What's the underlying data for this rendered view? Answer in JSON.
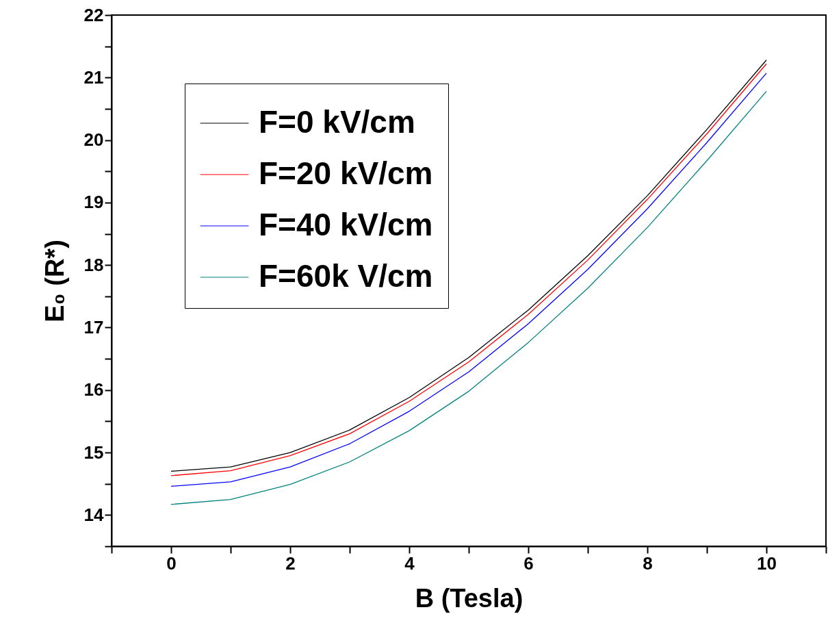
{
  "chart_data": {
    "type": "line",
    "xlabel": "B (Tesla)",
    "ylabel": "E₀ (R*)",
    "x": [
      0,
      1,
      2,
      3,
      4,
      5,
      6,
      7,
      8,
      9,
      10
    ],
    "series": [
      {
        "name": "F=0 kV/cm",
        "color": "#000000",
        "values": [
          14.7,
          14.77,
          15.0,
          15.36,
          15.88,
          16.52,
          17.28,
          18.15,
          19.11,
          20.17,
          21.28
        ]
      },
      {
        "name": "F=20 kV/cm",
        "color": "#ff0000",
        "values": [
          14.63,
          14.71,
          14.95,
          15.3,
          15.82,
          16.45,
          17.21,
          18.08,
          19.05,
          20.1,
          21.22
        ]
      },
      {
        "name": "F=40 kV/cm",
        "color": "#0000ff",
        "values": [
          14.46,
          14.53,
          14.77,
          15.14,
          15.66,
          16.29,
          17.06,
          17.93,
          18.9,
          19.96,
          21.07
        ]
      },
      {
        "name": "F=60k V/cm",
        "color": "#008080",
        "values": [
          14.17,
          14.25,
          14.49,
          14.85,
          15.35,
          15.98,
          16.76,
          17.63,
          18.6,
          19.67,
          20.78
        ]
      }
    ],
    "xlim": [
      -1,
      11
    ],
    "ylim": [
      13.5,
      22
    ],
    "xticks": [
      {
        "value": -1,
        "label": null
      },
      0,
      {
        "value": 1,
        "label": null
      },
      2,
      {
        "value": 3,
        "label": null
      },
      4,
      {
        "value": 5,
        "label": null
      },
      6,
      {
        "value": 7,
        "label": null
      },
      8,
      {
        "value": 9,
        "label": null
      },
      10,
      {
        "value": 11,
        "label": null
      }
    ],
    "yticks": [
      {
        "value": 13.5,
        "label": null
      },
      14,
      {
        "value": 14.5,
        "label": null
      },
      15,
      {
        "value": 15.5,
        "label": null
      },
      16,
      {
        "value": 16.5,
        "label": null
      },
      17,
      {
        "value": 17.5,
        "label": null
      },
      18,
      {
        "value": 18.5,
        "label": null
      },
      19,
      {
        "value": 19.5,
        "label": null
      },
      20,
      {
        "value": 20.5,
        "label": null
      },
      21,
      {
        "value": 21.5,
        "label": null
      },
      22
    ],
    "grid": false,
    "legend": "top left",
    "marker": "none",
    "line_style": "solid"
  }
}
